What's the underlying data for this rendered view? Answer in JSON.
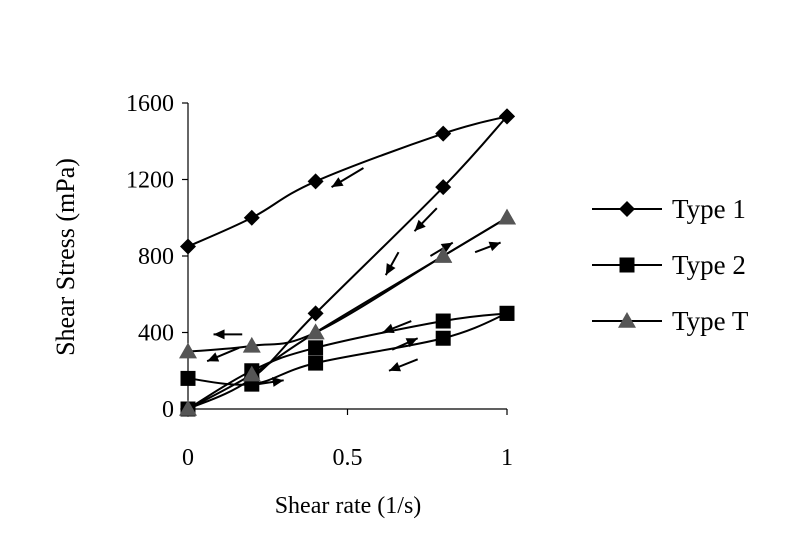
{
  "chart_data": {
    "type": "line",
    "title": "",
    "xlabel": "Shear rate (1/s)",
    "ylabel": "Shear Stress (mPa)",
    "xlim": [
      0,
      1
    ],
    "ylim": [
      0,
      1600
    ],
    "x_ticks": [
      {
        "value": 0,
        "label": "0"
      },
      {
        "value": 0.5,
        "label": "0.5"
      },
      {
        "value": 1,
        "label": "1"
      }
    ],
    "y_ticks": [
      {
        "value": 0,
        "label": "0"
      },
      {
        "value": 400,
        "label": "400"
      },
      {
        "value": 800,
        "label": "800"
      },
      {
        "value": 1200,
        "label": "1200"
      },
      {
        "value": 1600,
        "label": "1600"
      }
    ],
    "grid": false,
    "legend_position": "right",
    "series": [
      {
        "name": "Type 1",
        "marker": "diamond",
        "color": "#000000",
        "up": {
          "x": [
            0,
            0.2,
            0.4,
            0.8,
            1
          ],
          "y": [
            0,
            160,
            500,
            1160,
            1530
          ]
        },
        "down": {
          "x": [
            1,
            0.8,
            0.4,
            0.2,
            0
          ],
          "y": [
            1530,
            1440,
            1190,
            1000,
            850
          ]
        }
      },
      {
        "name": "Type 2",
        "marker": "square",
        "color": "#000000",
        "up": {
          "x": [
            0,
            0.2,
            0.4,
            0.8,
            1
          ],
          "y": [
            0,
            200,
            320,
            460,
            500
          ]
        },
        "down": {
          "x": [
            1,
            0.8,
            0.4,
            0.2,
            0
          ],
          "y": [
            500,
            370,
            240,
            130,
            160
          ]
        }
      },
      {
        "name": "Type T",
        "marker": "triangle",
        "color": "#555555",
        "up": {
          "x": [
            0,
            0.2,
            0.4,
            0.8,
            1
          ],
          "y": [
            0,
            180,
            400,
            800,
            1000
          ]
        },
        "down": {
          "x": [
            1,
            0.8,
            0.4,
            0.2,
            0
          ],
          "y": [
            1000,
            800,
            400,
            330,
            300
          ]
        }
      }
    ],
    "arrows": [
      {
        "from": [
          0.55,
          1260
        ],
        "to": [
          0.45,
          1160
        ]
      },
      {
        "from": [
          0.78,
          1050
        ],
        "to": [
          0.71,
          930
        ]
      },
      {
        "from": [
          0.66,
          820
        ],
        "to": [
          0.62,
          700
        ]
      },
      {
        "from": [
          0.76,
          800
        ],
        "to": [
          0.83,
          870
        ]
      },
      {
        "from": [
          0.9,
          820
        ],
        "to": [
          0.98,
          870
        ]
      },
      {
        "from": [
          0.7,
          460
        ],
        "to": [
          0.61,
          400
        ]
      },
      {
        "from": [
          0.64,
          310
        ],
        "to": [
          0.72,
          370
        ]
      },
      {
        "from": [
          0.72,
          260
        ],
        "to": [
          0.63,
          200
        ]
      },
      {
        "from": [
          0.17,
          390
        ],
        "to": [
          0.08,
          390
        ]
      },
      {
        "from": [
          0.16,
          320
        ],
        "to": [
          0.06,
          250
        ]
      },
      {
        "from": [
          0.22,
          130
        ],
        "to": [
          0.3,
          150
        ]
      }
    ]
  }
}
